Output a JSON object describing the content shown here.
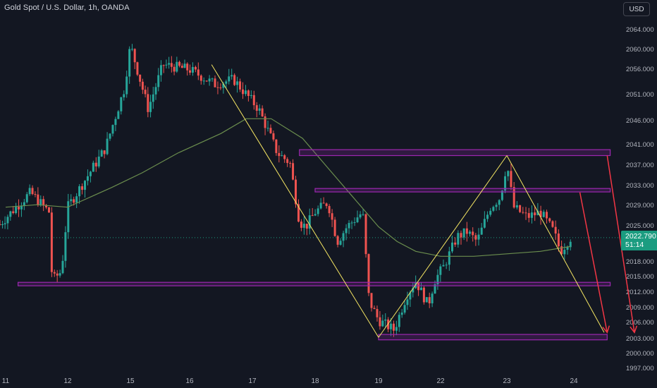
{
  "header": {
    "title": "Gold Spot / U.S. Dollar, 1h, OANDA",
    "currency_button": "USD"
  },
  "price_axis": {
    "ticks": [
      "2064.000",
      "2060.000",
      "2056.000",
      "2051.000",
      "2046.000",
      "2041.000",
      "2037.000",
      "2033.000",
      "2029.000",
      "2025.000",
      "2018.000",
      "2015.000",
      "2012.000",
      "2009.000",
      "2006.000",
      "2003.000",
      "2000.000",
      "1997.000"
    ],
    "current_price": "2022.790",
    "countdown": "51:14"
  },
  "time_axis": {
    "ticks": [
      "11",
      "12",
      "15",
      "16",
      "17",
      "18",
      "19",
      "22",
      "23",
      "24"
    ]
  },
  "colors": {
    "background": "#131722",
    "up": "#26a69a",
    "down": "#ef5350",
    "zones": "#9c27b0",
    "pattern_lines": "#f5e663",
    "arrows": "#f23645",
    "moving_average": "#6b8e4e",
    "price_tag": "#1b9c80"
  },
  "chart_data": {
    "type": "candlestick",
    "symbol": "Gold Spot / U.S. Dollar",
    "interval": "1h",
    "source": "OANDA",
    "ylim": [
      1995.5,
      2068
    ],
    "current_price": 2022.79,
    "price_anchors": [
      {
        "day": 10.9,
        "price": 2025.5
      },
      {
        "day": 11.4,
        "price": 2032
      },
      {
        "day": 11.7,
        "price": 2028
      },
      {
        "day": 11.75,
        "price": 2014
      },
      {
        "day": 11.9,
        "price": 2016
      },
      {
        "day": 12.0,
        "price": 2029
      },
      {
        "day": 12.3,
        "price": 2035
      },
      {
        "day": 12.6,
        "price": 2041
      },
      {
        "day": 12.9,
        "price": 2053
      },
      {
        "day": 13.0,
        "price": 2062
      },
      {
        "day": 13.3,
        "price": 2049
      },
      {
        "day": 13.55,
        "price": 2058
      },
      {
        "day": 14.0,
        "price": 2057
      },
      {
        "day": 14.4,
        "price": 2054
      },
      {
        "day": 14.7,
        "price": 2055
      },
      {
        "day": 15.1,
        "price": 2049
      },
      {
        "day": 15.4,
        "price": 2040
      },
      {
        "day": 15.6,
        "price": 2038
      },
      {
        "day": 15.75,
        "price": 2026
      },
      {
        "day": 15.85,
        "price": 2025
      },
      {
        "day": 16.0,
        "price": 2028
      },
      {
        "day": 16.2,
        "price": 2030
      },
      {
        "day": 16.35,
        "price": 2022
      },
      {
        "day": 16.5,
        "price": 2025
      },
      {
        "day": 16.75,
        "price": 2028
      },
      {
        "day": 16.85,
        "price": 2010
      },
      {
        "day": 17.0,
        "price": 2006
      },
      {
        "day": 17.25,
        "price": 2004
      },
      {
        "day": 17.45,
        "price": 2011
      },
      {
        "day": 17.6,
        "price": 2014
      },
      {
        "day": 17.8,
        "price": 2009
      },
      {
        "day": 17.9,
        "price": 2014
      },
      {
        "day": 18.05,
        "price": 2017
      },
      {
        "day": 18.25,
        "price": 2023
      },
      {
        "day": 18.4,
        "price": 2024
      },
      {
        "day": 18.55,
        "price": 2022
      },
      {
        "day": 18.75,
        "price": 2029
      },
      {
        "day": 18.9,
        "price": 2031
      },
      {
        "day": 19.0,
        "price": 2038
      },
      {
        "day": 19.1,
        "price": 2029
      },
      {
        "day": 19.3,
        "price": 2027
      },
      {
        "day": 19.5,
        "price": 2028
      },
      {
        "day": 19.7,
        "price": 2024
      },
      {
        "day": 19.8,
        "price": 2020
      },
      {
        "day": 19.95,
        "price": 2022.79
      }
    ],
    "moving_average": [
      {
        "day": 11.0,
        "price": 2029
      },
      {
        "day": 11.5,
        "price": 2029.5
      },
      {
        "day": 12.0,
        "price": 2029
      },
      {
        "day": 12.7,
        "price": 2033
      },
      {
        "day": 13.2,
        "price": 2036
      },
      {
        "day": 13.8,
        "price": 2040
      },
      {
        "day": 14.5,
        "price": 2044
      },
      {
        "day": 14.9,
        "price": 2047
      },
      {
        "day": 15.3,
        "price": 2047
      },
      {
        "day": 15.8,
        "price": 2043
      },
      {
        "day": 16.2,
        "price": 2037
      },
      {
        "day": 16.6,
        "price": 2031
      },
      {
        "day": 17.0,
        "price": 2025
      },
      {
        "day": 17.3,
        "price": 2022
      },
      {
        "day": 17.6,
        "price": 2020
      },
      {
        "day": 18.0,
        "price": 2019
      },
      {
        "day": 18.5,
        "price": 2019
      },
      {
        "day": 19.0,
        "price": 2019.5
      },
      {
        "day": 19.5,
        "price": 2020
      },
      {
        "day": 19.95,
        "price": 2021
      }
    ],
    "zones": [
      {
        "from_day": 15.75,
        "to_day": 20.6,
        "top": 2040.7,
        "bottom": 2039.5
      },
      {
        "from_day": 16.0,
        "to_day": 20.6,
        "top": 2032.8,
        "bottom": 2032.1
      },
      {
        "from_day": 11.2,
        "to_day": 20.6,
        "top": 2013.7,
        "bottom": 2013.0
      },
      {
        "from_day": 17.0,
        "to_day": 20.55,
        "top": 2003.1,
        "bottom": 2002.0
      }
    ],
    "pattern_lines": [
      {
        "from": {
          "day": 14.35,
          "price": 2058
        },
        "to": {
          "day": 17.0,
          "price": 2002.5
        }
      },
      {
        "from": {
          "day": 17.0,
          "price": 2002.5
        },
        "to": {
          "day": 19.0,
          "price": 2039.5
        }
      },
      {
        "from": {
          "day": 19.0,
          "price": 2039.5
        },
        "to": {
          "day": 20.5,
          "price": 2003.5
        }
      }
    ],
    "projection_arrows": [
      {
        "from": {
          "day": 20.1,
          "price": 2032
        },
        "to": {
          "day": 20.55,
          "price": 2003.5
        }
      },
      {
        "from": {
          "day": 20.55,
          "price": 2039.5
        },
        "to": {
          "day": 21.0,
          "price": 2003.5
        }
      }
    ]
  }
}
